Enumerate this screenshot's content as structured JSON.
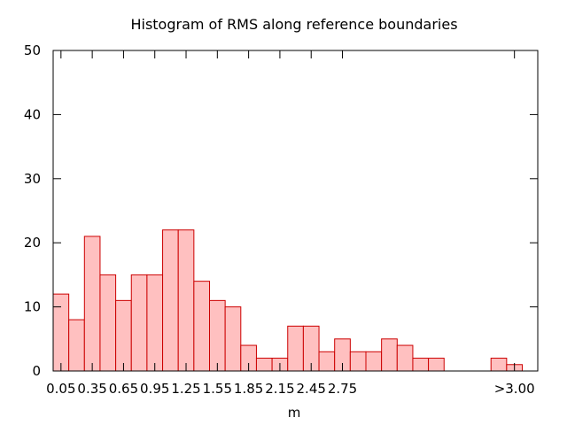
{
  "chart_data": {
    "type": "bar",
    "title": "Histogram of RMS along reference boundaries",
    "xlabel": "m",
    "ylabel": "",
    "ylim": [
      0,
      50
    ],
    "yticks": [
      0,
      10,
      20,
      30,
      40,
      50
    ],
    "xticks": [
      "0.05",
      "0.35",
      "0.65",
      "0.95",
      "1.25",
      "1.55",
      "1.85",
      "2.15",
      "2.45",
      "2.75",
      ">3.00"
    ],
    "grid": false,
    "legend": "none",
    "colors": {
      "bar_fill": "#ffc0c0",
      "bar_stroke": "#cc0000",
      "axis": "#000000"
    },
    "series": [
      {
        "values": [
          12,
          8,
          21,
          15,
          11,
          15,
          15,
          22,
          22,
          14,
          11,
          10,
          4,
          2,
          2,
          7,
          7,
          3,
          5,
          3,
          3,
          5,
          4,
          2,
          2,
          0,
          0,
          0,
          2,
          1
        ]
      }
    ]
  }
}
